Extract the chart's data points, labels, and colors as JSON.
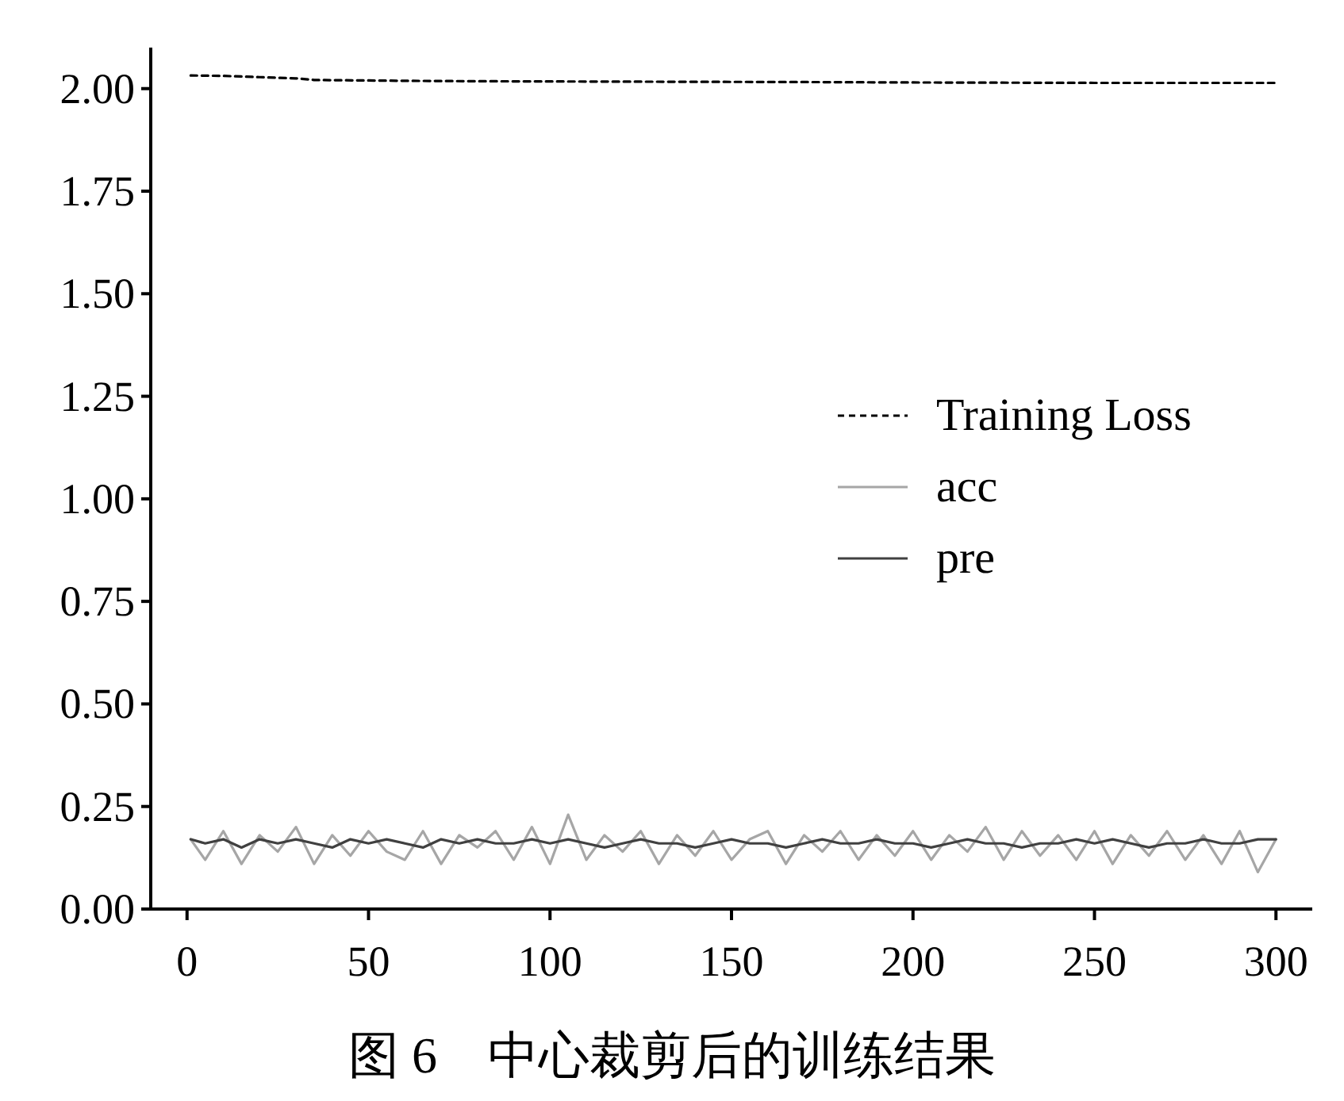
{
  "chart_data": {
    "type": "line",
    "annotations": [
      "图 6　中心裁剪后的训练结果"
    ],
    "x": [
      1,
      5,
      10,
      15,
      20,
      25,
      30,
      35,
      40,
      45,
      50,
      55,
      60,
      65,
      70,
      75,
      80,
      85,
      90,
      95,
      100,
      105,
      110,
      115,
      120,
      125,
      130,
      135,
      140,
      145,
      150,
      155,
      160,
      165,
      170,
      175,
      180,
      185,
      190,
      195,
      200,
      205,
      210,
      215,
      220,
      225,
      230,
      235,
      240,
      245,
      250,
      255,
      260,
      265,
      270,
      275,
      280,
      285,
      290,
      295,
      300
    ],
    "series": [
      {
        "name": "Training Loss",
        "color": "#000000",
        "line_style": "dashed",
        "x": [
          1,
          10,
          20,
          30,
          35,
          60,
          80,
          120,
          170,
          200,
          250,
          300
        ],
        "values": [
          2.032,
          2.031,
          2.028,
          2.025,
          2.021,
          2.019,
          2.018,
          2.017,
          2.016,
          2.015,
          2.014,
          2.014
        ]
      },
      {
        "name": "acc",
        "color": "#a6a6a6",
        "line_style": "solid",
        "values": [
          0.17,
          0.12,
          0.19,
          0.11,
          0.18,
          0.14,
          0.2,
          0.11,
          0.18,
          0.13,
          0.19,
          0.14,
          0.12,
          0.19,
          0.11,
          0.18,
          0.15,
          0.19,
          0.12,
          0.2,
          0.11,
          0.23,
          0.12,
          0.18,
          0.14,
          0.19,
          0.11,
          0.18,
          0.13,
          0.19,
          0.12,
          0.17,
          0.19,
          0.11,
          0.18,
          0.14,
          0.19,
          0.12,
          0.18,
          0.13,
          0.19,
          0.12,
          0.18,
          0.14,
          0.2,
          0.12,
          0.19,
          0.13,
          0.18,
          0.12,
          0.19,
          0.11,
          0.18,
          0.13,
          0.19,
          0.12,
          0.18,
          0.11,
          0.19,
          0.09,
          0.17
        ]
      },
      {
        "name": "pre",
        "color": "#404040",
        "line_style": "solid",
        "values": [
          0.17,
          0.16,
          0.17,
          0.15,
          0.17,
          0.16,
          0.17,
          0.16,
          0.15,
          0.17,
          0.16,
          0.17,
          0.16,
          0.15,
          0.17,
          0.16,
          0.17,
          0.16,
          0.16,
          0.17,
          0.16,
          0.17,
          0.16,
          0.15,
          0.16,
          0.17,
          0.16,
          0.16,
          0.15,
          0.16,
          0.17,
          0.16,
          0.16,
          0.15,
          0.16,
          0.17,
          0.16,
          0.16,
          0.17,
          0.16,
          0.16,
          0.15,
          0.16,
          0.17,
          0.16,
          0.16,
          0.15,
          0.16,
          0.16,
          0.17,
          0.16,
          0.17,
          0.16,
          0.15,
          0.16,
          0.16,
          0.17,
          0.16,
          0.16,
          0.17,
          0.17
        ]
      }
    ],
    "xlim": [
      -10,
      310
    ],
    "ylim": [
      0,
      2.1
    ],
    "xticks": [
      0,
      50,
      100,
      150,
      200,
      250,
      300
    ],
    "yticks": [
      {
        "value": 0,
        "label": "0.00"
      },
      {
        "value": 0.25,
        "label": "0.25"
      },
      {
        "value": 0.5,
        "label": "0.50"
      },
      {
        "value": 0.75,
        "label": "0.75"
      },
      {
        "value": 1,
        "label": "1.00"
      },
      {
        "value": 1.25,
        "label": "1.25"
      },
      {
        "value": 1.5,
        "label": "1.50"
      },
      {
        "value": 1.75,
        "label": "1.75"
      },
      {
        "value": 2,
        "label": "2.00"
      }
    ],
    "legend": "right"
  }
}
